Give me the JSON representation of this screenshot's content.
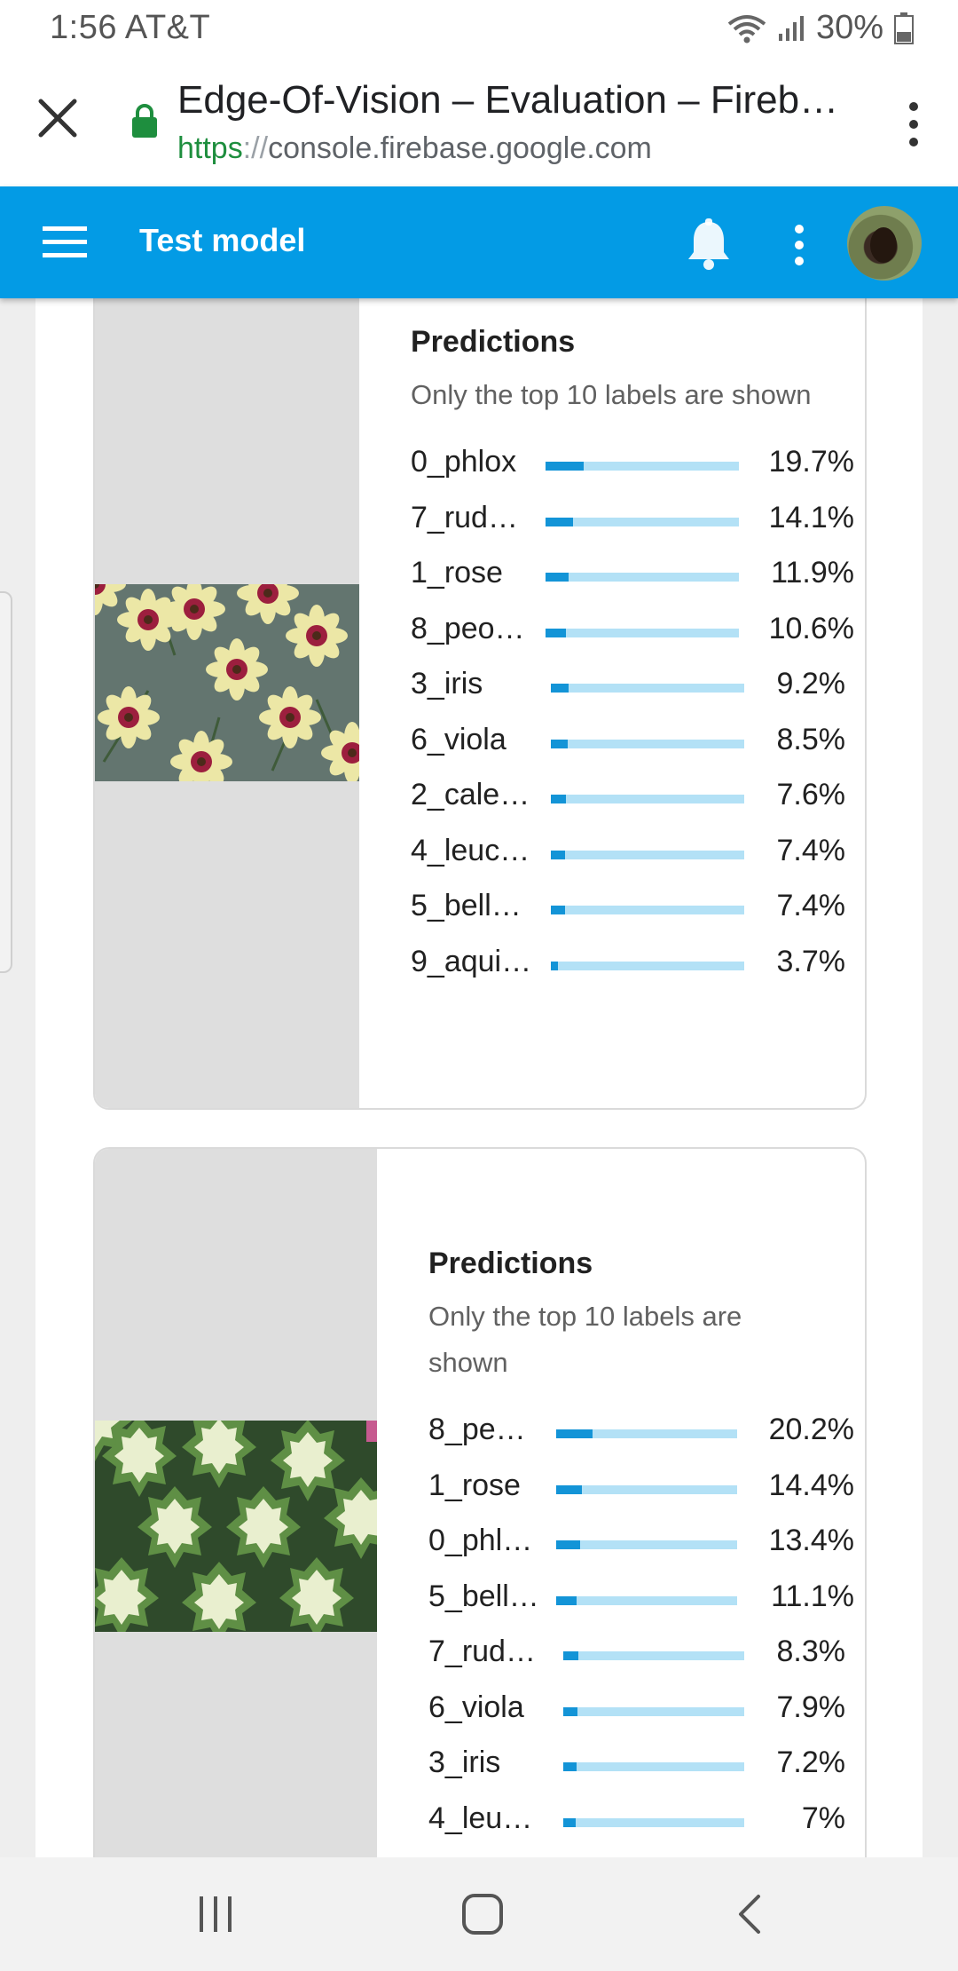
{
  "status_bar": {
    "time_carrier": "1:56 AT&T",
    "battery": "30%"
  },
  "browser": {
    "page_title": "Edge-Of-Vision – Evaluation – Fireb…",
    "url_scheme": "https",
    "url_sep": "://",
    "url_host": "console.firebase.google.com"
  },
  "app_bar": {
    "title": "Test model"
  },
  "cards": [
    {
      "heading": "Predictions",
      "subheading": "Only the top 10 labels are shown",
      "predictions": [
        {
          "label": "0_phlox",
          "percent": "19.7%",
          "value": 0.197
        },
        {
          "label": "7_rud…",
          "percent": "14.1%",
          "value": 0.141
        },
        {
          "label": "1_rose",
          "percent": "11.9%",
          "value": 0.119
        },
        {
          "label": "8_peo…",
          "percent": "10.6%",
          "value": 0.106
        },
        {
          "label": "3_iris",
          "percent": "9.2%",
          "value": 0.092
        },
        {
          "label": "6_viola",
          "percent": "8.5%",
          "value": 0.085
        },
        {
          "label": "2_cale…",
          "percent": "7.6%",
          "value": 0.076
        },
        {
          "label": "4_leuc…",
          "percent": "7.4%",
          "value": 0.074
        },
        {
          "label": "5_bell…",
          "percent": "7.4%",
          "value": 0.074
        },
        {
          "label": "9_aqui…",
          "percent": "3.7%",
          "value": 0.037
        }
      ]
    },
    {
      "heading": "Predictions",
      "subheading": "Only the top 10 labels are shown",
      "predictions": [
        {
          "label": "8_pe…",
          "percent": "20.2%",
          "value": 0.202
        },
        {
          "label": "1_rose",
          "percent": "14.4%",
          "value": 0.144
        },
        {
          "label": "0_phl…",
          "percent": "13.4%",
          "value": 0.134
        },
        {
          "label": "5_bell…",
          "percent": "11.1%",
          "value": 0.111
        },
        {
          "label": "7_rud…",
          "percent": "8.3%",
          "value": 0.083
        },
        {
          "label": "6_viola",
          "percent": "7.9%",
          "value": 0.079
        },
        {
          "label": "3_iris",
          "percent": "7.2%",
          "value": 0.072
        },
        {
          "label": "4_leu…",
          "percent": "7%",
          "value": 0.07
        }
      ]
    }
  ],
  "colors": {
    "app_bar": "#039be5",
    "bar_fill": "#1394d7",
    "bar_track": "#b3e1f6",
    "lock": "#1e8e3e"
  },
  "icons": [
    "wifi-icon",
    "signal-icon",
    "battery-icon",
    "close-icon",
    "lock-icon",
    "more-vert-icon",
    "menu-icon",
    "bell-icon",
    "recents-icon",
    "home-icon",
    "back-icon"
  ]
}
